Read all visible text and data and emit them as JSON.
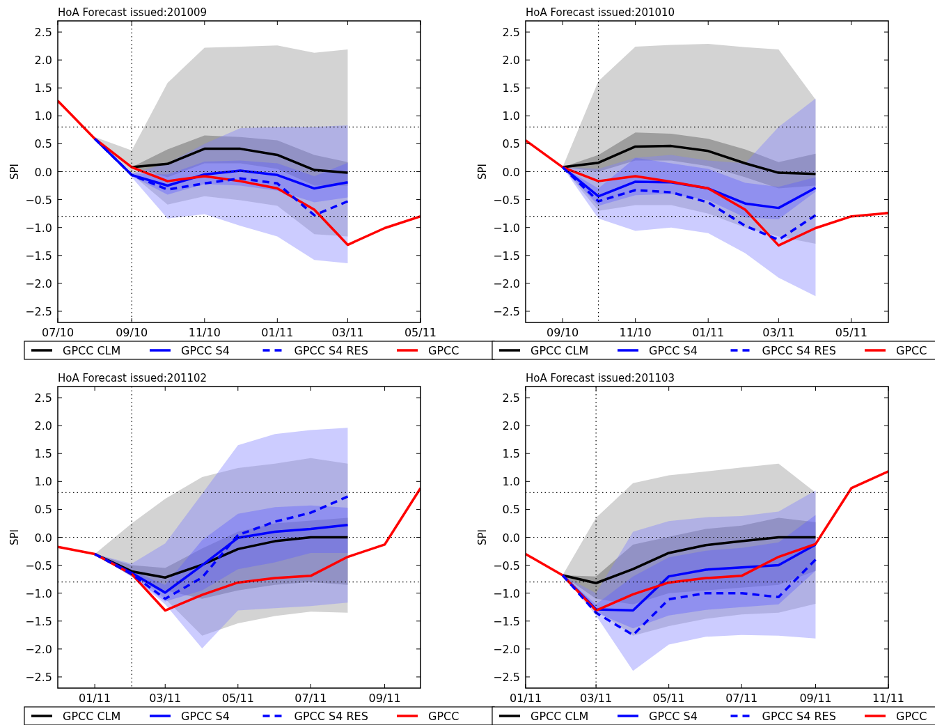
{
  "chart_data": [
    {
      "type": "line",
      "title": "HoA Forecast issued:201009",
      "ylabel": "SPI",
      "xlim": [
        "2010-07",
        "2011-05"
      ],
      "ylim": [
        -2.7,
        2.7
      ],
      "xticks": [
        {
          "value": "2010-07",
          "label": "07/10"
        },
        {
          "value": "2010-09",
          "label": "09/10"
        },
        {
          "value": "2010-11",
          "label": "11/10"
        },
        {
          "value": "2011-01",
          "label": "01/11"
        },
        {
          "value": "2011-03",
          "label": "03/11"
        },
        {
          "value": "2011-05",
          "label": "05/11"
        }
      ],
      "yticks": [
        {
          "value": -2.5,
          "label": "−2.5"
        },
        {
          "value": -2,
          "label": "−2.0"
        },
        {
          "value": -1.5,
          "label": "−1.5"
        },
        {
          "value": -1,
          "label": "−1.0"
        },
        {
          "value": -0.5,
          "label": "−0.5"
        },
        {
          "value": 0,
          "label": "0.0"
        },
        {
          "value": 0.5,
          "label": "0.5"
        },
        {
          "value": 1,
          "label": "1.0"
        },
        {
          "value": 1.5,
          "label": "1.5"
        },
        {
          "value": 2,
          "label": "2.0"
        },
        {
          "value": 2.5,
          "label": "2.5"
        }
      ],
      "legend": "bottom",
      "ref_lines": [
        {
          "axis": "y",
          "value": 0.8,
          "color": "#000000",
          "line_style": "dotted"
        },
        {
          "axis": "y",
          "value": 0,
          "color": "#000000",
          "line_style": "dotted"
        },
        {
          "axis": "y",
          "value": -0.8,
          "color": "#000000",
          "line_style": "dotted"
        },
        {
          "axis": "x",
          "value": "2010-09",
          "color": "#000000",
          "line_style": "dotted"
        }
      ],
      "series": [
        {
          "color": "#909090",
          "x": [
            "2010-08",
            "2010-09",
            "2010-10",
            "2010-11",
            "2010-12",
            "2011-01",
            "2011-02",
            "2011-03"
          ],
          "values": [
            null,
            null,
            null,
            null,
            null,
            null,
            null,
            null
          ],
          "upper": [
            0.62,
            0.38,
            1.59,
            2.22,
            2.24,
            2.26,
            2.13,
            2.19
          ],
          "lower": [
            0.62,
            -0.05,
            -0.59,
            -0.44,
            -0.51,
            -0.61,
            -1.12,
            -1.16
          ]
        },
        {
          "color": "#505050",
          "x": [
            "2010-08",
            "2010-09",
            "2010-10",
            "2010-11",
            "2010-12",
            "2011-01",
            "2011-02",
            "2011-03"
          ],
          "values": [
            null,
            null,
            null,
            null,
            null,
            null,
            null,
            null
          ],
          "upper": [
            0.62,
            0.08,
            0.4,
            0.65,
            0.62,
            0.56,
            0.3,
            0.17
          ],
          "lower": [
            0.62,
            0.08,
            -0.1,
            0.15,
            0.15,
            0.05,
            -0.25,
            -0.25
          ]
        },
        {
          "color": "#8080ff",
          "x": [
            "2010-08",
            "2010-09",
            "2010-10",
            "2010-11",
            "2010-12",
            "2011-01",
            "2011-02",
            "2011-03"
          ],
          "values": [
            null,
            null,
            null,
            null,
            null,
            null,
            null,
            null
          ],
          "upper": [
            0.59,
            -0.03,
            0.15,
            0.5,
            0.78,
            0.8,
            0.8,
            0.83
          ],
          "lower": [
            0.59,
            -0.1,
            -0.84,
            -0.76,
            -0.97,
            -1.16,
            -1.58,
            -1.64
          ]
        },
        {
          "color": "#6060ff",
          "x": [
            "2010-08",
            "2010-09",
            "2010-10",
            "2010-11",
            "2010-12",
            "2011-01",
            "2011-02",
            "2011-03"
          ],
          "values": [
            null,
            null,
            null,
            null,
            null,
            null,
            null,
            null
          ],
          "upper": [
            0.59,
            -0.03,
            -0.05,
            0.18,
            0.2,
            0.15,
            -0.08,
            0.16
          ],
          "lower": [
            0.59,
            -0.08,
            -0.41,
            -0.22,
            -0.25,
            -0.34,
            -0.55,
            -0.46
          ]
        },
        {
          "name": "GPCC CLM",
          "color": "#000000",
          "line_style": "solid",
          "x": [
            "2010-09",
            "2010-10",
            "2010-11",
            "2010-12",
            "2011-01",
            "2011-02",
            "2011-03"
          ],
          "values": [
            0.08,
            0.14,
            0.41,
            0.41,
            0.3,
            0.03,
            -0.02
          ]
        },
        {
          "name": "GPCC S4",
          "color": "#0000ff",
          "line_style": "solid",
          "x": [
            "2010-08",
            "2010-09",
            "2010-10",
            "2010-11",
            "2010-12",
            "2011-01",
            "2011-02",
            "2011-03"
          ],
          "values": [
            0.59,
            -0.06,
            -0.25,
            -0.05,
            0.02,
            -0.06,
            -0.3,
            -0.19
          ]
        },
        {
          "name": "GPCC S4 RES",
          "color": "#0000ff",
          "line_style": "dashed",
          "x": [
            "2010-08",
            "2010-09",
            "2010-10",
            "2010-11",
            "2010-12",
            "2011-01",
            "2011-02",
            "2011-03"
          ],
          "values": [
            0.59,
            -0.06,
            -0.32,
            -0.21,
            -0.12,
            -0.21,
            -0.78,
            -0.53
          ]
        },
        {
          "name": "GPCC",
          "color": "#ff0000",
          "line_style": "solid",
          "x": [
            "2010-07",
            "2010-08",
            "2010-09",
            "2010-10",
            "2010-11",
            "2010-12",
            "2011-01",
            "2011-02",
            "2011-03",
            "2011-04",
            "2011-05"
          ],
          "values": [
            1.27,
            0.59,
            0.08,
            -0.17,
            -0.08,
            -0.17,
            -0.3,
            -0.68,
            -1.31,
            -1.01,
            -0.8
          ]
        }
      ]
    },
    {
      "type": "line",
      "title": "HoA Forecast issued:201010",
      "ylabel": "SPI",
      "xlim": [
        "2010-08",
        "2011-06"
      ],
      "ylim": [
        -2.7,
        2.7
      ],
      "xticks": [
        {
          "value": "2010-09",
          "label": "09/10"
        },
        {
          "value": "2010-11",
          "label": "11/10"
        },
        {
          "value": "2011-01",
          "label": "01/11"
        },
        {
          "value": "2011-03",
          "label": "03/11"
        },
        {
          "value": "2011-05",
          "label": "05/11"
        }
      ],
      "yticks": [
        {
          "value": -2.5,
          "label": "−2.5"
        },
        {
          "value": -2,
          "label": "−2.0"
        },
        {
          "value": -1.5,
          "label": "−1.5"
        },
        {
          "value": -1,
          "label": "−1.0"
        },
        {
          "value": -0.5,
          "label": "−0.5"
        },
        {
          "value": 0,
          "label": "0.0"
        },
        {
          "value": 0.5,
          "label": "0.5"
        },
        {
          "value": 1,
          "label": "1.0"
        },
        {
          "value": 1.5,
          "label": "1.5"
        },
        {
          "value": 2,
          "label": "2.0"
        },
        {
          "value": 2.5,
          "label": "2.5"
        }
      ],
      "legend": "bottom",
      "ref_lines": [
        {
          "axis": "y",
          "value": 0.8,
          "color": "#000000",
          "line_style": "dotted"
        },
        {
          "axis": "y",
          "value": 0,
          "color": "#000000",
          "line_style": "dotted"
        },
        {
          "axis": "y",
          "value": -0.8,
          "color": "#000000",
          "line_style": "dotted"
        },
        {
          "axis": "x",
          "value": "2010-10",
          "color": "#000000",
          "line_style": "dotted"
        }
      ],
      "series": [
        {
          "color": "#909090",
          "x": [
            "2010-09",
            "2010-10",
            "2010-11",
            "2010-12",
            "2011-01",
            "2011-02",
            "2011-03",
            "2011-04"
          ],
          "values": [
            null,
            null,
            null,
            null,
            null,
            null,
            null,
            null
          ],
          "upper": [
            0.08,
            1.62,
            2.24,
            2.27,
            2.29,
            2.23,
            2.19,
            1.29
          ],
          "lower": [
            0.08,
            -0.7,
            -0.6,
            -0.6,
            -0.75,
            -1.0,
            -1.16,
            -1.29
          ]
        },
        {
          "color": "#505050",
          "x": [
            "2010-09",
            "2010-10",
            "2010-11",
            "2010-12",
            "2011-01",
            "2011-02",
            "2011-03",
            "2011-04"
          ],
          "values": [
            null,
            null,
            null,
            null,
            null,
            null,
            null,
            null
          ],
          "upper": [
            0.08,
            0.3,
            0.7,
            0.68,
            0.59,
            0.4,
            0.17,
            0.32
          ],
          "lower": [
            0.08,
            0.0,
            0.2,
            0.2,
            0.1,
            -0.1,
            -0.3,
            -0.25
          ]
        },
        {
          "color": "#8080ff",
          "x": [
            "2010-09",
            "2010-10",
            "2010-11",
            "2010-12",
            "2011-01",
            "2011-02",
            "2011-03",
            "2011-04"
          ],
          "values": [
            null,
            null,
            null,
            null,
            null,
            null,
            null,
            null
          ],
          "upper": [
            0.08,
            0.05,
            0.25,
            0.3,
            0.2,
            0.15,
            0.8,
            1.31
          ],
          "lower": [
            0.08,
            -0.84,
            -1.06,
            -1.0,
            -1.1,
            -1.46,
            -1.9,
            -2.23
          ]
        },
        {
          "color": "#6060ff",
          "x": [
            "2010-09",
            "2010-10",
            "2010-11",
            "2010-12",
            "2011-01",
            "2011-02",
            "2011-03",
            "2011-04"
          ],
          "values": [
            null,
            null,
            null,
            null,
            null,
            null,
            null,
            null
          ],
          "upper": [
            0.08,
            -0.3,
            0.25,
            0.15,
            0.05,
            -0.2,
            -0.27,
            -0.1
          ],
          "lower": [
            0.08,
            -0.61,
            -0.42,
            -0.4,
            -0.51,
            -0.82,
            -0.85,
            -0.36
          ]
        },
        {
          "name": "GPCC CLM",
          "color": "#000000",
          "line_style": "solid",
          "x": [
            "2010-09",
            "2010-10",
            "2010-11",
            "2010-12",
            "2011-01",
            "2011-02",
            "2011-03",
            "2011-04"
          ],
          "values": [
            0.08,
            0.16,
            0.45,
            0.46,
            0.37,
            0.15,
            -0.02,
            -0.04
          ]
        },
        {
          "name": "GPCC S4",
          "color": "#0000ff",
          "line_style": "solid",
          "x": [
            "2010-09",
            "2010-10",
            "2010-11",
            "2010-12",
            "2011-01",
            "2011-02",
            "2011-03",
            "2011-04"
          ],
          "values": [
            0.08,
            -0.44,
            -0.18,
            -0.19,
            -0.3,
            -0.57,
            -0.65,
            -0.29
          ]
        },
        {
          "name": "GPCC S4 RES",
          "color": "#0000ff",
          "line_style": "dashed",
          "x": [
            "2010-09",
            "2010-10",
            "2010-11",
            "2010-12",
            "2011-01",
            "2011-02",
            "2011-03",
            "2011-04"
          ],
          "values": [
            0.08,
            -0.53,
            -0.33,
            -0.37,
            -0.55,
            -0.97,
            -1.22,
            -0.78
          ]
        },
        {
          "name": "GPCC",
          "color": "#ff0000",
          "line_style": "solid",
          "x": [
            "2010-08",
            "2010-09",
            "2010-10",
            "2010-11",
            "2010-12",
            "2011-01",
            "2011-02",
            "2011-03",
            "2011-04",
            "2011-05",
            "2011-06"
          ],
          "values": [
            0.56,
            0.08,
            -0.17,
            -0.08,
            -0.18,
            -0.3,
            -0.68,
            -1.32,
            -1.01,
            -0.8,
            -0.74
          ]
        }
      ]
    },
    {
      "type": "line",
      "title": "HoA Forecast issued:201102",
      "ylabel": "SPI",
      "xlim": [
        "2010-12",
        "2011-10"
      ],
      "ylim": [
        -2.7,
        2.7
      ],
      "xticks": [
        {
          "value": "2011-01",
          "label": "01/11"
        },
        {
          "value": "2011-03",
          "label": "03/11"
        },
        {
          "value": "2011-05",
          "label": "05/11"
        },
        {
          "value": "2011-07",
          "label": "07/11"
        },
        {
          "value": "2011-09",
          "label": "09/11"
        }
      ],
      "yticks": [
        {
          "value": -2.5,
          "label": "−2.5"
        },
        {
          "value": -2,
          "label": "−2.0"
        },
        {
          "value": -1.5,
          "label": "−1.5"
        },
        {
          "value": -1,
          "label": "−1.0"
        },
        {
          "value": -0.5,
          "label": "−0.5"
        },
        {
          "value": 0,
          "label": "0.0"
        },
        {
          "value": 0.5,
          "label": "0.5"
        },
        {
          "value": 1,
          "label": "1.0"
        },
        {
          "value": 1.5,
          "label": "1.5"
        },
        {
          "value": 2,
          "label": "2.0"
        },
        {
          "value": 2.5,
          "label": "2.5"
        }
      ],
      "legend": "bottom",
      "ref_lines": [
        {
          "axis": "y",
          "value": 0.8,
          "color": "#000000",
          "line_style": "dotted"
        },
        {
          "axis": "y",
          "value": 0,
          "color": "#000000",
          "line_style": "dotted"
        },
        {
          "axis": "y",
          "value": -0.8,
          "color": "#000000",
          "line_style": "dotted"
        },
        {
          "axis": "x",
          "value": "2011-02",
          "color": "#000000",
          "line_style": "dotted"
        }
      ],
      "series": [
        {
          "color": "#909090",
          "x": [
            "2011-01",
            "2011-02",
            "2011-03",
            "2011-04",
            "2011-05",
            "2011-06",
            "2011-07",
            "2011-08"
          ],
          "values": [
            null,
            null,
            null,
            null,
            null,
            null,
            null,
            null
          ],
          "upper": [
            -0.3,
            0.25,
            0.69,
            1.08,
            1.24,
            1.32,
            1.42,
            1.32
          ],
          "lower": [
            -0.3,
            -0.65,
            -1.1,
            -1.76,
            -1.54,
            -1.41,
            -1.33,
            -1.35
          ]
        },
        {
          "color": "#505050",
          "x": [
            "2011-01",
            "2011-02",
            "2011-03",
            "2011-04",
            "2011-05",
            "2011-06",
            "2011-07",
            "2011-08"
          ],
          "values": [
            null,
            null,
            null,
            null,
            null,
            null,
            null,
            null
          ],
          "upper": [
            -0.3,
            -0.5,
            -0.55,
            -0.2,
            0.1,
            0.25,
            0.3,
            0.35
          ],
          "lower": [
            -0.3,
            -0.7,
            -0.95,
            -1.1,
            -0.95,
            -0.85,
            -0.8,
            -0.85
          ]
        },
        {
          "color": "#8080ff",
          "x": [
            "2011-01",
            "2011-02",
            "2011-03",
            "2011-04",
            "2011-05",
            "2011-06",
            "2011-07",
            "2011-08"
          ],
          "values": [
            null,
            null,
            null,
            null,
            null,
            null,
            null,
            null
          ],
          "upper": [
            -0.3,
            -0.47,
            -0.11,
            0.78,
            1.65,
            1.85,
            1.92,
            1.96
          ],
          "lower": [
            -0.3,
            -0.7,
            -1.2,
            -1.99,
            -1.31,
            -1.27,
            -1.23,
            -1.17
          ]
        },
        {
          "color": "#6060ff",
          "x": [
            "2011-01",
            "2011-02",
            "2011-03",
            "2011-04",
            "2011-05",
            "2011-06",
            "2011-07",
            "2011-08"
          ],
          "values": [
            null,
            null,
            null,
            null,
            null,
            null,
            null,
            null
          ],
          "upper": [
            -0.3,
            -0.6,
            -0.85,
            -0.05,
            0.42,
            0.54,
            0.57,
            0.53
          ],
          "lower": [
            -0.3,
            -0.7,
            -1.15,
            -0.95,
            -0.57,
            -0.45,
            -0.28,
            -0.28
          ]
        },
        {
          "name": "GPCC CLM",
          "color": "#000000",
          "line_style": "solid",
          "x": [
            "2011-01",
            "2011-02",
            "2011-03",
            "2011-04",
            "2011-05",
            "2011-06",
            "2011-07",
            "2011-08"
          ],
          "values": [
            -0.3,
            -0.61,
            -0.72,
            -0.49,
            -0.21,
            -0.07,
            0.0,
            0.0
          ]
        },
        {
          "name": "GPCC S4",
          "color": "#0000ff",
          "line_style": "solid",
          "x": [
            "2011-01",
            "2011-02",
            "2011-03",
            "2011-04",
            "2011-05",
            "2011-06",
            "2011-07",
            "2011-08"
          ],
          "values": [
            -0.3,
            -0.64,
            -0.99,
            -0.5,
            -0.01,
            0.1,
            0.15,
            0.22
          ]
        },
        {
          "name": "GPCC S4 RES",
          "color": "#0000ff",
          "line_style": "dashed",
          "x": [
            "2011-01",
            "2011-02",
            "2011-03",
            "2011-04",
            "2011-05",
            "2011-06",
            "2011-07",
            "2011-08"
          ],
          "values": [
            -0.3,
            -0.66,
            -1.1,
            -0.72,
            0.04,
            0.28,
            0.44,
            0.73
          ]
        },
        {
          "name": "GPCC",
          "color": "#ff0000",
          "line_style": "solid",
          "x": [
            "2010-12",
            "2011-01",
            "2011-02",
            "2011-03",
            "2011-04",
            "2011-05",
            "2011-06",
            "2011-07",
            "2011-08",
            "2011-09",
            "2011-10"
          ],
          "values": [
            -0.17,
            -0.3,
            -0.66,
            -1.31,
            -1.03,
            -0.81,
            -0.73,
            -0.69,
            -0.35,
            -0.13,
            0.88
          ]
        }
      ]
    },
    {
      "type": "line",
      "title": "HoA Forecast issued:201103",
      "ylabel": "SPI",
      "xlim": [
        "2011-01",
        "2011-11"
      ],
      "ylim": [
        -2.7,
        2.7
      ],
      "xticks": [
        {
          "value": "2011-01",
          "label": "01/11"
        },
        {
          "value": "2011-03",
          "label": "03/11"
        },
        {
          "value": "2011-05",
          "label": "05/11"
        },
        {
          "value": "2011-07",
          "label": "07/11"
        },
        {
          "value": "2011-09",
          "label": "09/11"
        },
        {
          "value": "2011-11",
          "label": "11/11"
        }
      ],
      "yticks": [
        {
          "value": -2.5,
          "label": "−2.5"
        },
        {
          "value": -2,
          "label": "−2.0"
        },
        {
          "value": -1.5,
          "label": "−1.5"
        },
        {
          "value": -1,
          "label": "−1.0"
        },
        {
          "value": -0.5,
          "label": "−0.5"
        },
        {
          "value": 0,
          "label": "0.0"
        },
        {
          "value": 0.5,
          "label": "0.5"
        },
        {
          "value": 1,
          "label": "1.0"
        },
        {
          "value": 1.5,
          "label": "1.5"
        },
        {
          "value": 2,
          "label": "2.0"
        },
        {
          "value": 2.5,
          "label": "2.5"
        }
      ],
      "legend": "bottom",
      "ref_lines": [
        {
          "axis": "y",
          "value": 0.8,
          "color": "#000000",
          "line_style": "dotted"
        },
        {
          "axis": "y",
          "value": 0,
          "color": "#000000",
          "line_style": "dotted"
        },
        {
          "axis": "y",
          "value": -0.8,
          "color": "#000000",
          "line_style": "dotted"
        },
        {
          "axis": "x",
          "value": "2011-03",
          "color": "#000000",
          "line_style": "dotted"
        }
      ],
      "series": [
        {
          "color": "#909090",
          "x": [
            "2011-02",
            "2011-03",
            "2011-04",
            "2011-05",
            "2011-06",
            "2011-07",
            "2011-08",
            "2011-09"
          ],
          "values": [
            null,
            null,
            null,
            null,
            null,
            null,
            null,
            null
          ],
          "upper": [
            -0.68,
            0.35,
            0.97,
            1.11,
            1.18,
            1.25,
            1.32,
            0.8
          ],
          "lower": [
            -0.68,
            -1.3,
            -1.76,
            -1.59,
            -1.46,
            -1.38,
            -1.35,
            -1.19
          ]
        },
        {
          "color": "#505050",
          "x": [
            "2011-02",
            "2011-03",
            "2011-04",
            "2011-05",
            "2011-06",
            "2011-07",
            "2011-08",
            "2011-09"
          ],
          "values": [
            null,
            null,
            null,
            null,
            null,
            null,
            null,
            null
          ],
          "upper": [
            -0.68,
            -0.7,
            -0.13,
            0.01,
            0.15,
            0.21,
            0.35,
            0.27
          ],
          "lower": [
            -0.68,
            -1.1,
            -1.2,
            -1.0,
            -0.95,
            -0.9,
            -0.85,
            -0.6
          ]
        },
        {
          "color": "#8080ff",
          "x": [
            "2011-02",
            "2011-03",
            "2011-04",
            "2011-05",
            "2011-06",
            "2011-07",
            "2011-08",
            "2011-09"
          ],
          "values": [
            null,
            null,
            null,
            null,
            null,
            null,
            null,
            null
          ],
          "upper": [
            -0.68,
            -1.0,
            0.1,
            0.29,
            0.36,
            0.38,
            0.46,
            0.84
          ],
          "lower": [
            -0.68,
            -1.4,
            -2.39,
            -1.92,
            -1.78,
            -1.75,
            -1.76,
            -1.81
          ]
        },
        {
          "color": "#6060ff",
          "x": [
            "2011-02",
            "2011-03",
            "2011-04",
            "2011-05",
            "2011-06",
            "2011-07",
            "2011-08",
            "2011-09"
          ],
          "values": [
            null,
            null,
            null,
            null,
            null,
            null,
            null,
            null
          ],
          "upper": [
            -0.68,
            -1.2,
            -0.7,
            -0.36,
            -0.24,
            -0.19,
            -0.09,
            0.4
          ],
          "lower": [
            -0.68,
            -1.35,
            -1.63,
            -1.4,
            -1.3,
            -1.25,
            -1.2,
            -0.6
          ]
        },
        {
          "name": "GPCC CLM",
          "color": "#000000",
          "line_style": "solid",
          "x": [
            "2011-02",
            "2011-03",
            "2011-04",
            "2011-05",
            "2011-06",
            "2011-07",
            "2011-08",
            "2011-09"
          ],
          "values": [
            -0.68,
            -0.82,
            -0.57,
            -0.28,
            -0.14,
            -0.07,
            0.0,
            0.0
          ]
        },
        {
          "name": "GPCC S4",
          "color": "#0000ff",
          "line_style": "solid",
          "x": [
            "2011-02",
            "2011-03",
            "2011-04",
            "2011-05",
            "2011-06",
            "2011-07",
            "2011-08",
            "2011-09"
          ],
          "values": [
            -0.68,
            -1.29,
            -1.31,
            -0.7,
            -0.58,
            -0.54,
            -0.5,
            -0.13
          ]
        },
        {
          "name": "GPCC S4 RES",
          "color": "#0000ff",
          "line_style": "dashed",
          "x": [
            "2011-02",
            "2011-03",
            "2011-04",
            "2011-05",
            "2011-06",
            "2011-07",
            "2011-08",
            "2011-09"
          ],
          "values": [
            -0.68,
            -1.35,
            -1.75,
            -1.11,
            -1.0,
            -1.0,
            -1.07,
            -0.4
          ]
        },
        {
          "name": "GPCC",
          "color": "#ff0000",
          "line_style": "solid",
          "x": [
            "2011-01",
            "2011-02",
            "2011-03",
            "2011-04",
            "2011-05",
            "2011-06",
            "2011-07",
            "2011-08",
            "2011-09",
            "2011-10",
            "2011-11"
          ],
          "values": [
            -0.3,
            -0.68,
            -1.31,
            -1.02,
            -0.81,
            -0.73,
            -0.69,
            -0.35,
            -0.12,
            0.88,
            1.18
          ]
        }
      ]
    }
  ]
}
